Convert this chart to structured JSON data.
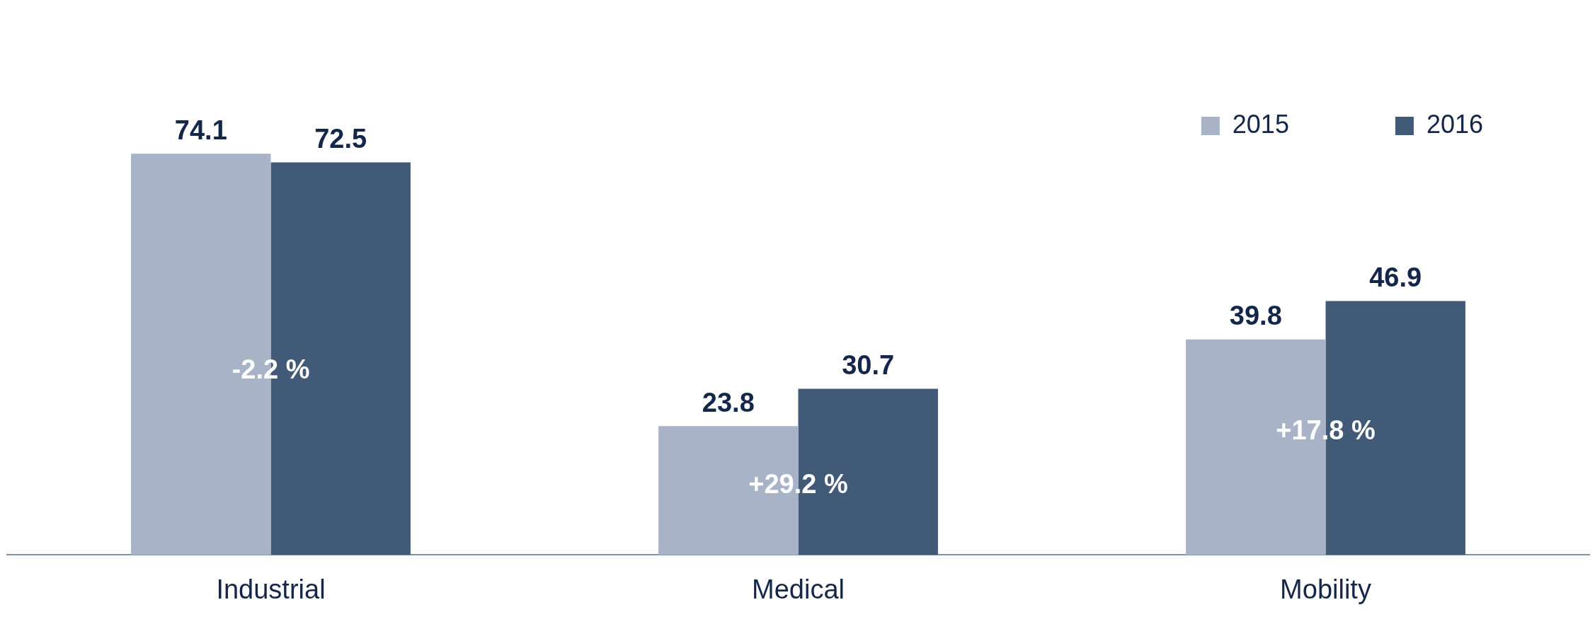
{
  "chart_data": {
    "type": "bar",
    "categories": [
      "Industrial",
      "Medical",
      "Mobility"
    ],
    "series": [
      {
        "name": "2015",
        "color": "#a9b3c8",
        "values": [
          74.1,
          23.8,
          39.8
        ]
      },
      {
        "name": "2016",
        "color": "#415a77",
        "values": [
          72.5,
          30.7,
          46.9
        ]
      }
    ],
    "data_labels": true,
    "legend": "top right",
    "grid": false,
    "tick_labels": "x",
    "annotations": [
      {
        "text": "-2.2 %",
        "x": "Industrial",
        "y": 34
      },
      {
        "text": "+29.2 %",
        "x": "Medical",
        "y": 12.8
      },
      {
        "text": "+17.8 %",
        "x": "Mobility",
        "y": 22.7
      }
    ]
  }
}
